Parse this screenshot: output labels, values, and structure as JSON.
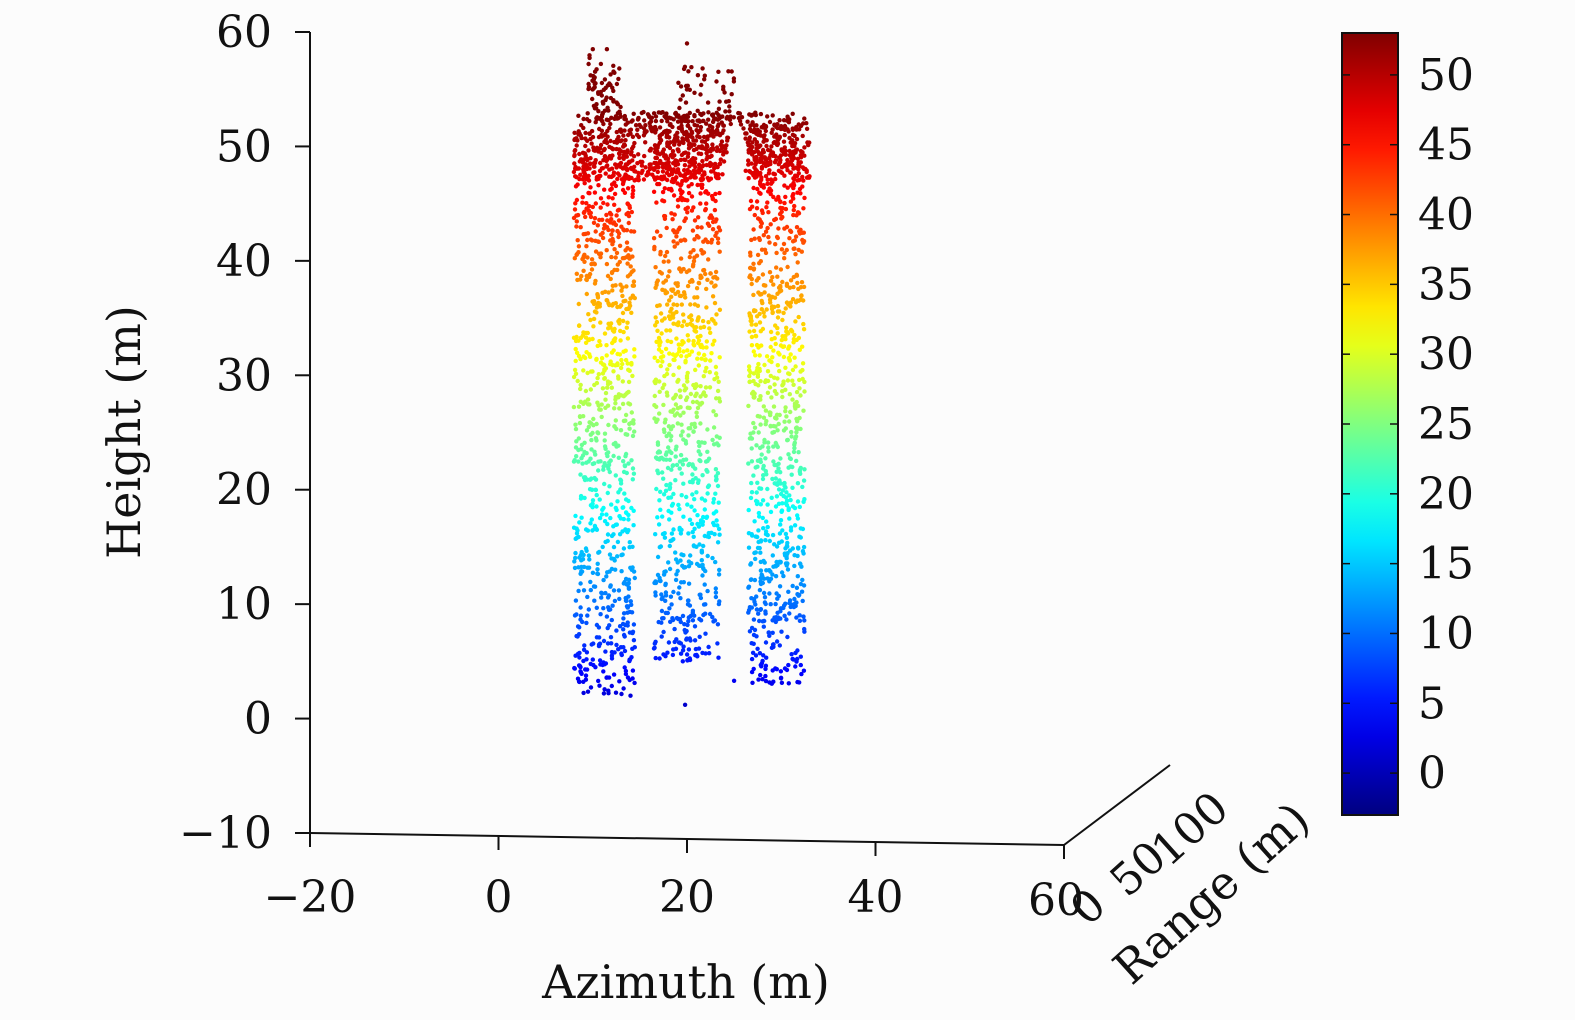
{
  "chart_data": {
    "type": "scatter",
    "projection": "3d",
    "title": "",
    "xlabel": "Azimuth (m)",
    "ylabel": "Range (m)",
    "zlabel": "Height (m)",
    "xticks": [
      "−20",
      "0",
      "20",
      "40",
      "60"
    ],
    "yticks": [
      "0",
      "50",
      "100"
    ],
    "zticks": [
      "−10",
      "0",
      "10",
      "20",
      "30",
      "40",
      "50",
      "60"
    ],
    "xlim": [
      -20,
      60
    ],
    "ylim": [
      0,
      150
    ],
    "zlim": [
      -10,
      60
    ],
    "grid": false,
    "colorbar": {
      "ticks": [
        "0",
        "5",
        "10",
        "15",
        "20",
        "25",
        "30",
        "35",
        "40",
        "45",
        "50"
      ],
      "range": [
        -3,
        53
      ],
      "colormap": "jet",
      "location": "right"
    },
    "point_cloud": {
      "description_of_structure": "dense point cloud of a building colored by height",
      "columns": [
        {
          "azimuth_range": [
            8,
            14.5
          ],
          "height_range": [
            2,
            51.5
          ]
        },
        {
          "azimuth_range": [
            16.5,
            23.5
          ],
          "height_range": [
            5,
            53
          ]
        },
        {
          "azimuth_range": [
            26.5,
            32.5
          ],
          "height_range": [
            3,
            52
          ]
        }
      ],
      "roof": {
        "azimuth_range": [
          8,
          33
        ],
        "height_range": [
          47,
          53
        ]
      },
      "outliers": [
        {
          "azimuth": 10,
          "height": 58.5
        },
        {
          "azimuth": 11.5,
          "height": 58.5
        },
        {
          "azimuth": 20,
          "height": 59
        },
        {
          "azimuth": 19.8,
          "height": 1.2
        },
        {
          "azimuth": 25,
          "height": 3.3
        },
        {
          "azimuth": 14,
          "height": 2
        }
      ],
      "seed": 7
    }
  }
}
